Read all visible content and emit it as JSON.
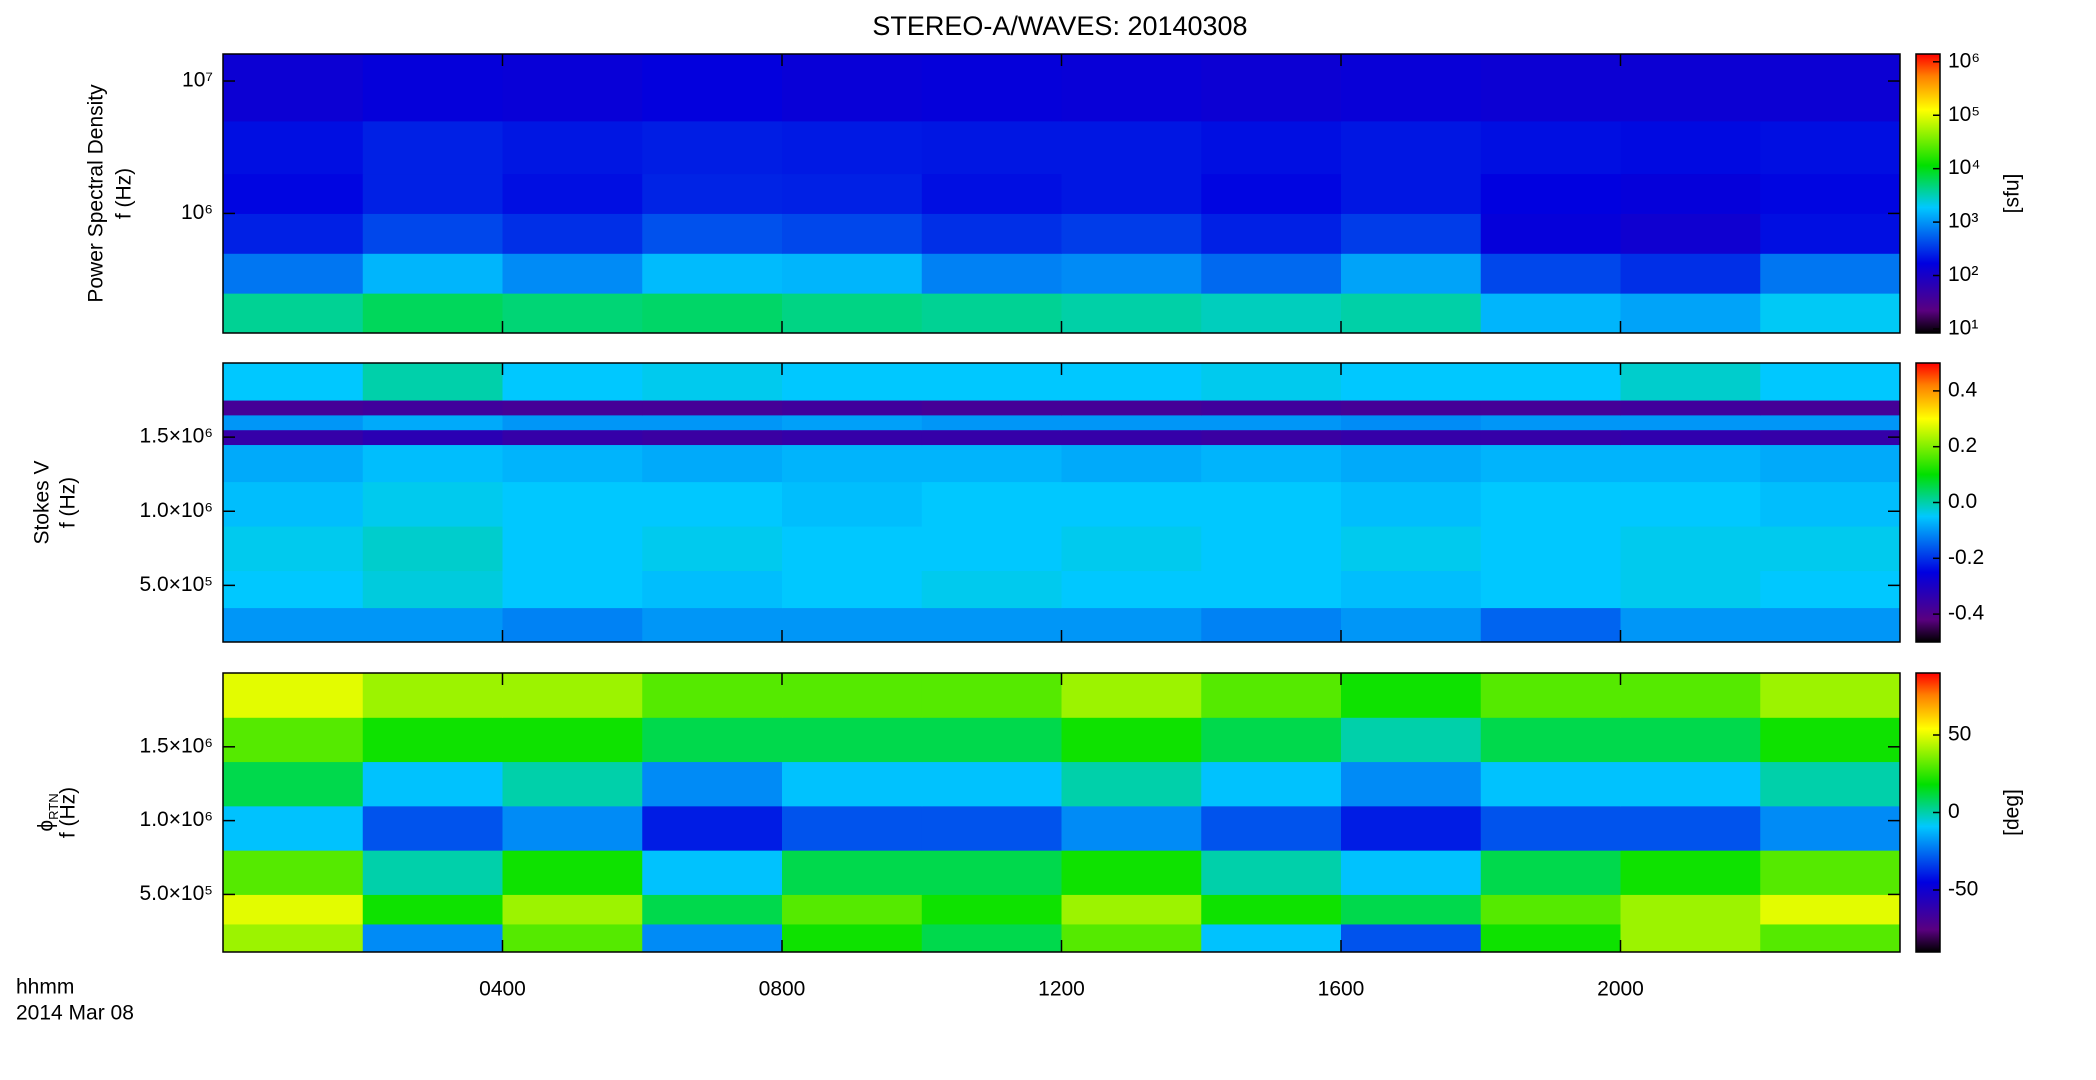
{
  "chart_data": [
    {
      "type": "heatmap",
      "title": "STEREO-A/WAVES: 20140308",
      "ylabel": [
        "Power Spectral Density",
        "f (Hz)"
      ],
      "xlim": [
        0,
        24
      ],
      "xticks": [
        4,
        8,
        12,
        16,
        20
      ],
      "ylim": [
        125000,
        16000000
      ],
      "ylog": true,
      "yticks": [
        {
          "value": 1000000,
          "label": "10⁶"
        },
        {
          "value": 10000000,
          "label": "10⁷"
        }
      ],
      "xbins": [
        0,
        2,
        4,
        6,
        8,
        10,
        12,
        14,
        16,
        18,
        20,
        22,
        24
      ],
      "ybins": [
        125000,
        250000,
        500000,
        1000000,
        2000000,
        5000000,
        16000000
      ],
      "z": [
        [
          4000,
          6000,
          5000,
          5500,
          4500,
          4000,
          3500,
          3000,
          3500,
          1500,
          1200,
          2000
        ],
        [
          700,
          1500,
          900,
          1600,
          1500,
          800,
          900,
          600,
          1200,
          400,
          300,
          700
        ],
        [
          250,
          400,
          300,
          450,
          400,
          300,
          350,
          250,
          350,
          150,
          120,
          200
        ],
        [
          180,
          250,
          200,
          260,
          250,
          200,
          220,
          180,
          220,
          170,
          150,
          180
        ],
        [
          200,
          250,
          220,
          240,
          230,
          220,
          220,
          200,
          220,
          200,
          190,
          200
        ],
        [
          130,
          150,
          140,
          160,
          140,
          150,
          140,
          130,
          140,
          130,
          130,
          130
        ]
      ],
      "colormap": "rainbow",
      "colorbar": {
        "clim": [
          8.4,
          1400000
        ],
        "clog": true,
        "cticks": [
          {
            "value": 10,
            "label": "10¹"
          },
          {
            "value": 100,
            "label": "10²"
          },
          {
            "value": 1000,
            "label": "10³"
          },
          {
            "value": 10000,
            "label": "10⁴"
          },
          {
            "value": 100000,
            "label": "10⁵"
          },
          {
            "value": 1000000,
            "label": "10⁶"
          }
        ],
        "label": "[sfu]"
      }
    },
    {
      "type": "heatmap",
      "ylabel": [
        "Stokes V",
        "f (Hz)"
      ],
      "xlim": [
        0,
        24
      ],
      "xticks": [
        4,
        8,
        12,
        16,
        20
      ],
      "ylim": [
        118000,
        2000000
      ],
      "ylog": false,
      "yticks": [
        {
          "value": 500000,
          "label": "5.0×10⁵"
        },
        {
          "value": 1000000,
          "label": "1.0×10⁶"
        },
        {
          "value": 1500000,
          "label": "1.5×10⁶"
        }
      ],
      "xbins": [
        0,
        2,
        4,
        6,
        8,
        10,
        12,
        14,
        16,
        18,
        20,
        22,
        24
      ],
      "ybins": [
        118000,
        350000,
        600000,
        900000,
        1200000,
        1450000,
        1550000,
        1650000,
        1750000,
        2000000
      ],
      "z": [
        [
          -0.1,
          -0.1,
          -0.12,
          -0.1,
          -0.1,
          -0.1,
          -0.1,
          -0.12,
          -0.1,
          -0.15,
          -0.1,
          -0.1
        ],
        [
          -0.05,
          -0.03,
          -0.05,
          -0.06,
          -0.05,
          -0.04,
          -0.05,
          -0.05,
          -0.06,
          -0.05,
          -0.04,
          -0.05
        ],
        [
          -0.04,
          -0.02,
          -0.05,
          -0.04,
          -0.05,
          -0.05,
          -0.04,
          -0.05,
          -0.04,
          -0.05,
          -0.04,
          -0.04
        ],
        [
          -0.06,
          -0.04,
          -0.05,
          -0.05,
          -0.06,
          -0.05,
          -0.05,
          -0.05,
          -0.06,
          -0.05,
          -0.05,
          -0.06
        ],
        [
          -0.08,
          -0.06,
          -0.07,
          -0.08,
          -0.07,
          -0.07,
          -0.08,
          -0.07,
          -0.08,
          -0.07,
          -0.07,
          -0.08
        ],
        [
          -0.35,
          -0.33,
          -0.35,
          -0.36,
          -0.35,
          -0.35,
          -0.35,
          -0.36,
          -0.35,
          -0.35,
          -0.34,
          -0.35
        ],
        [
          -0.1,
          -0.08,
          -0.1,
          -0.1,
          -0.09,
          -0.1,
          -0.1,
          -0.1,
          -0.11,
          -0.1,
          -0.1,
          -0.1
        ],
        [
          -0.38,
          -0.37,
          -0.38,
          -0.38,
          -0.37,
          -0.38,
          -0.38,
          -0.37,
          -0.38,
          -0.38,
          -0.37,
          -0.38
        ],
        [
          -0.05,
          0.0,
          -0.05,
          -0.04,
          -0.05,
          -0.05,
          -0.05,
          -0.04,
          -0.05,
          -0.05,
          -0.02,
          -0.05
        ]
      ],
      "colormap": "rainbow",
      "colorbar": {
        "clim": [
          -0.5,
          0.5
        ],
        "clog": false,
        "cticks": [
          {
            "value": -0.4,
            "label": "-0.4"
          },
          {
            "value": -0.2,
            "label": "-0.2"
          },
          {
            "value": 0,
            "label": "0.0"
          },
          {
            "value": 0.2,
            "label": "0.2"
          },
          {
            "value": 0.4,
            "label": "0.4"
          }
        ]
      }
    },
    {
      "type": "heatmap",
      "ylabel": [
        "ϕ",
        "f (Hz)"
      ],
      "ylabel_sub": "RTN",
      "xlim": [
        0,
        24
      ],
      "xticks": [
        {
          "value": 4,
          "label": "0400"
        },
        {
          "value": 8,
          "label": "0800"
        },
        {
          "value": 12,
          "label": "1200"
        },
        {
          "value": 16,
          "label": "1600"
        },
        {
          "value": 20,
          "label": "2000"
        }
      ],
      "xlabel": [
        "hhmm",
        "2014 Mar 08"
      ],
      "ylim": [
        110000,
        2000000
      ],
      "ylog": false,
      "yticks": [
        {
          "value": 500000,
          "label": "5.0×10⁵"
        },
        {
          "value": 1000000,
          "label": "1.0×10⁶"
        },
        {
          "value": 1500000,
          "label": "1.5×10⁶"
        }
      ],
      "xbins": [
        0,
        2,
        4,
        6,
        8,
        10,
        12,
        14,
        16,
        18,
        20,
        22,
        24
      ],
      "ybins": [
        110000,
        300000,
        500000,
        800000,
        1100000,
        1400000,
        1700000,
        2000000
      ],
      "z": [
        [
          40,
          -20,
          30,
          -20,
          20,
          10,
          30,
          -10,
          -30,
          20,
          40,
          30
        ],
        [
          50,
          20,
          40,
          10,
          30,
          20,
          40,
          20,
          10,
          30,
          40,
          50
        ],
        [
          30,
          0,
          20,
          -10,
          10,
          10,
          20,
          0,
          -10,
          10,
          20,
          30
        ],
        [
          -10,
          -30,
          -20,
          -40,
          -30,
          -30,
          -20,
          -30,
          -40,
          -30,
          -30,
          -20
        ],
        [
          10,
          -10,
          0,
          -20,
          -10,
          -10,
          0,
          -10,
          -20,
          -10,
          -10,
          0
        ],
        [
          30,
          20,
          20,
          10,
          10,
          10,
          20,
          10,
          0,
          10,
          10,
          20
        ],
        [
          50,
          40,
          40,
          30,
          30,
          30,
          40,
          30,
          20,
          30,
          30,
          40
        ]
      ],
      "colormap": "rainbow",
      "colorbar": {
        "clim": [
          -90,
          90
        ],
        "clog": false,
        "cticks": [
          {
            "value": -50,
            "label": "-50"
          },
          {
            "value": 0,
            "label": "0"
          },
          {
            "value": 50,
            "label": "50"
          }
        ],
        "label": "[deg]"
      }
    }
  ]
}
